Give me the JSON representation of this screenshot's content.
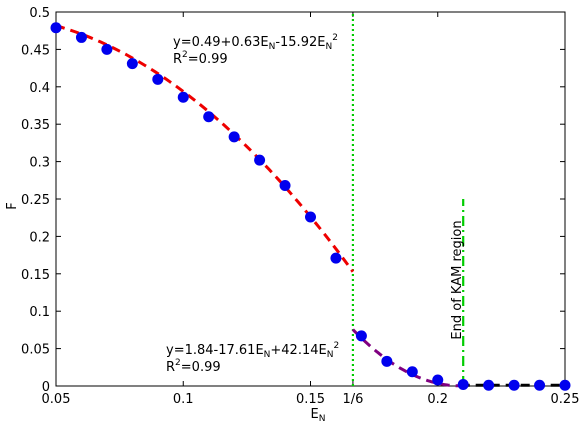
{
  "chart_data": {
    "type": "scatter",
    "xlabel_main": "E",
    "xlabel_sub": "N",
    "ylabel": "F",
    "xlim": [
      0.05,
      0.25
    ],
    "ylim": [
      0,
      0.5
    ],
    "xticks": [
      {
        "value": 0.05,
        "label": "0.05"
      },
      {
        "value": 0.1,
        "label": "0.1"
      },
      {
        "value": 0.15,
        "label": "0.15"
      },
      {
        "value": 0.16667,
        "label": "1/6"
      },
      {
        "value": 0.2,
        "label": "0.2"
      },
      {
        "value": 0.25,
        "label": "0.25"
      }
    ],
    "yticks": [
      {
        "value": 0,
        "label": "0"
      },
      {
        "value": 0.05,
        "label": "0.05"
      },
      {
        "value": 0.1,
        "label": "0.1"
      },
      {
        "value": 0.15,
        "label": "0.15"
      },
      {
        "value": 0.2,
        "label": "0.2"
      },
      {
        "value": 0.25,
        "label": "0.25"
      },
      {
        "value": 0.3,
        "label": "0.3"
      },
      {
        "value": 0.35,
        "label": "0.35"
      },
      {
        "value": 0.4,
        "label": "0.4"
      },
      {
        "value": 0.45,
        "label": "0.45"
      },
      {
        "value": 0.5,
        "label": "0.5"
      }
    ],
    "points": {
      "color": "#0000ee",
      "x": [
        0.05,
        0.06,
        0.07,
        0.08,
        0.09,
        0.1,
        0.11,
        0.12,
        0.13,
        0.14,
        0.15,
        0.16,
        0.17,
        0.18,
        0.19,
        0.2,
        0.21,
        0.22,
        0.23,
        0.24,
        0.25
      ],
      "y": [
        0.479,
        0.466,
        0.45,
        0.431,
        0.41,
        0.386,
        0.36,
        0.333,
        0.302,
        0.268,
        0.226,
        0.171,
        0.067,
        0.033,
        0.019,
        0.008,
        0.002,
        0.001,
        0.001,
        0.001,
        0.001
      ]
    },
    "fits": [
      {
        "color": "#ee0000",
        "style": "dashed",
        "x": [
          0.05,
          0.16667
        ],
        "coeffs": [
          0.49,
          0.63,
          -15.92
        ]
      },
      {
        "color": "#800080",
        "style": "dashed",
        "x": [
          0.16667,
          0.209
        ],
        "coeffs": [
          1.84,
          -17.61,
          42.14
        ]
      },
      {
        "color": "#000000",
        "style": "dashed",
        "x": [
          0.209,
          0.25
        ],
        "constant": 0.001
      }
    ],
    "vlines": [
      {
        "x": 0.16667,
        "color": "#00cc00",
        "style": "dotted",
        "y": [
          0,
          0.5
        ]
      },
      {
        "x": 0.21,
        "color": "#00cc00",
        "style": "dashdot",
        "y": [
          0,
          0.25
        ]
      }
    ],
    "annotations": {
      "fit1_eq": {
        "parts": [
          "y=0.49+0.63E",
          "N",
          "-15.92E",
          "N",
          "2"
        ]
      },
      "fit1_r2": {
        "parts": [
          "R",
          "2",
          "=0.99"
        ]
      },
      "fit2_eq": {
        "parts": [
          "y=1.84-17.61E",
          "N",
          "+42.14E",
          "N",
          "2"
        ]
      },
      "fit2_r2": {
        "parts": [
          "R",
          "2",
          "=0.99"
        ]
      },
      "kam_label": "End of KAM region"
    }
  }
}
